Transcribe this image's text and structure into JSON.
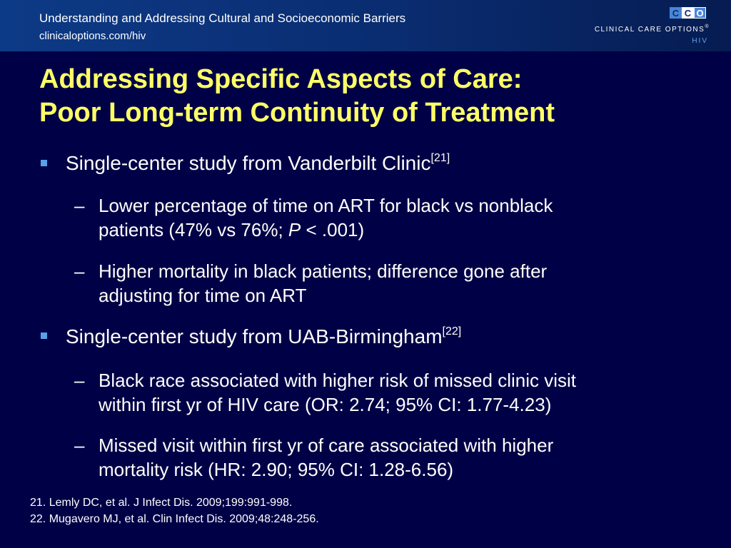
{
  "header": {
    "title": "Understanding and Addressing Cultural and Socioeconomic Barriers",
    "url": "clinicaloptions.com/hiv",
    "brand": {
      "letters": [
        "C",
        "C",
        "O"
      ],
      "name": "CLINICAL CARE OPTIONS",
      "trademark": "®",
      "sub": "HIV"
    }
  },
  "slide": {
    "title_line1": "Addressing Specific Aspects of Care:",
    "title_line2": "Poor Long-term Continuity of Treatment"
  },
  "bullets": [
    {
      "text": "Single-center study from Vanderbilt Clinic",
      "ref": "[21]",
      "subs": [
        {
          "line1": "Lower percentage of time on ART for black vs nonblack",
          "line2_pre": "patients (47% vs 76%; ",
          "line2_italic": "P",
          "line2_post": " < .001)"
        },
        {
          "line1": "Higher mortality in black patients; difference gone after",
          "line2": "adjusting for time on ART"
        }
      ]
    },
    {
      "text": "Single-center study from UAB-Birmingham",
      "ref": "[22]",
      "subs": [
        {
          "line1": "Black race associated with higher risk of missed clinic visit",
          "line2": "within first yr of HIV care (OR: 2.74; 95% CI: 1.77-4.23)"
        },
        {
          "line1": "Missed visit within first yr of care associated with higher",
          "line2": "mortality risk (HR: 2.90; 95% CI: 1.28-6.56)"
        }
      ]
    }
  ],
  "dash_char": "–",
  "footnotes": [
    "21. Lemly DC, et al. J Infect Dis. 2009;199:991-998.",
    "22. Mugavero MJ, et al. Clin Infect Dis. 2009;48:248-256."
  ],
  "colors": {
    "background": "#000046",
    "title": "#ffff66",
    "bullet": "#5aa0e8"
  }
}
